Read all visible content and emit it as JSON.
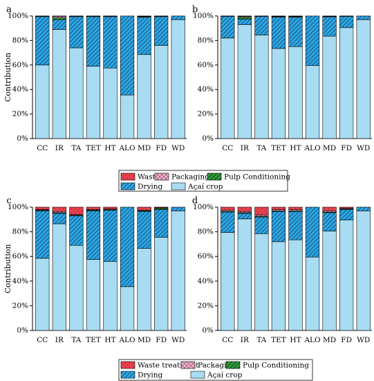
{
  "colors": {
    "acai_crop": "#a8dcf2",
    "drying": "#2aa8e3",
    "pulp_conditioning": "#2f9a3a",
    "packaging": "#e8b4c8",
    "wastes": "#e6424f",
    "axis": "#000000"
  },
  "legends": [
    {
      "entries": [
        {
          "label": "Wastes",
          "series": "Wastes"
        },
        {
          "label": "Packaging",
          "series": "Packaging"
        },
        {
          "label": "Pulp Conditioning",
          "series": "Pulp Conditioning"
        },
        {
          "label": "Drying",
          "series": "Drying"
        },
        {
          "label": "Açaí crop",
          "series": "Açaí crop"
        }
      ]
    },
    {
      "entries": [
        {
          "label": "Waste treatment",
          "series": "Wastes"
        },
        {
          "label": "Packaging",
          "series": "Packaging"
        },
        {
          "label": "Pulp Conditioning",
          "series": "Pulp Conditioning"
        },
        {
          "label": "Drying",
          "series": "Drying"
        },
        {
          "label": "Açaí crop",
          "series": "Açaí crop"
        }
      ]
    }
  ],
  "chart_data": [
    {
      "type": "bar",
      "panel": "a",
      "ylabel": "Contribution",
      "ylim": [
        0,
        100
      ],
      "yticks": [
        "0%",
        "20%",
        "40%",
        "60%",
        "80%",
        "100%"
      ],
      "categories": [
        "CC",
        "IR",
        "TA",
        "TET",
        "HT",
        "ALO",
        "MD",
        "FD",
        "WD"
      ],
      "series": [
        {
          "name": "Açaí crop",
          "values": [
            60,
            89,
            74,
            59,
            57.5,
            35.5,
            68.5,
            76,
            97
          ]
        },
        {
          "name": "Drying",
          "values": [
            39.5,
            8,
            25.5,
            40.5,
            42,
            64.5,
            30.5,
            23.5,
            3
          ]
        },
        {
          "name": "Pulp Conditioning",
          "values": [
            0.2,
            1.5,
            0.2,
            0.2,
            0.2,
            0,
            0.3,
            0.2,
            0
          ]
        },
        {
          "name": "Packaging",
          "values": [
            0.2,
            1.2,
            0.2,
            0.2,
            0.2,
            0,
            0.4,
            0.2,
            0
          ]
        },
        {
          "name": "Wastes",
          "values": [
            0.1,
            0.3,
            0.1,
            0.1,
            0.1,
            0,
            0.3,
            0.1,
            0
          ]
        }
      ]
    },
    {
      "type": "bar",
      "panel": "b",
      "ylim": [
        0,
        100
      ],
      "yticks": [
        "0%",
        "20%",
        "40%",
        "60%",
        "80%",
        "100%"
      ],
      "categories": [
        "CC",
        "IR",
        "TA",
        "TET",
        "HT",
        "ALO",
        "MD",
        "FD",
        "WD"
      ],
      "series": [
        {
          "name": "Açaí crop",
          "values": [
            82,
            93,
            84.5,
            73.5,
            75,
            59.5,
            83.5,
            90.5,
            97
          ]
        },
        {
          "name": "Drying",
          "values": [
            17.6,
            4.5,
            15.1,
            25.6,
            24,
            40.5,
            15.8,
            9.1,
            3
          ]
        },
        {
          "name": "Pulp Conditioning",
          "values": [
            0.2,
            1.5,
            0.2,
            0.4,
            0.5,
            0,
            0.3,
            0.2,
            0
          ]
        },
        {
          "name": "Packaging",
          "values": [
            0.1,
            0.7,
            0.1,
            0.3,
            0.3,
            0,
            0.2,
            0.1,
            0
          ]
        },
        {
          "name": "Wastes",
          "values": [
            0.1,
            0.3,
            0.1,
            0.2,
            0.2,
            0,
            0.2,
            0.1,
            0
          ]
        }
      ]
    },
    {
      "type": "bar",
      "panel": "c",
      "ylabel": "Contribution",
      "ylim": [
        0,
        100
      ],
      "yticks": [
        "0%",
        "20%",
        "40%",
        "60%",
        "80%",
        "100%"
      ],
      "categories": [
        "CC",
        "IR",
        "TA",
        "TET",
        "HT",
        "ALO",
        "MD",
        "FD",
        "WD"
      ],
      "series": [
        {
          "name": "Açaí crop",
          "values": [
            58.5,
            86.5,
            69,
            57.5,
            56,
            35.5,
            66.5,
            75.5,
            97
          ]
        },
        {
          "name": "Drying",
          "values": [
            38.5,
            8.5,
            24,
            39.5,
            41.5,
            64.5,
            30,
            22.5,
            3
          ]
        },
        {
          "name": "Pulp Conditioning",
          "values": [
            0.5,
            0.5,
            0.5,
            0.5,
            0.5,
            0,
            0.5,
            1,
            0
          ]
        },
        {
          "name": "Packaging",
          "values": [
            0.5,
            1,
            0.5,
            0.5,
            0.5,
            0,
            0.5,
            0.5,
            0
          ]
        },
        {
          "name": "Wastes",
          "values": [
            2,
            3.5,
            6,
            2,
            1.5,
            0,
            2.5,
            0.5,
            0
          ]
        }
      ]
    },
    {
      "type": "bar",
      "panel": "d",
      "ylim": [
        0,
        100
      ],
      "yticks": [
        "0%",
        "20%",
        "40%",
        "60%",
        "80%",
        "100%"
      ],
      "categories": [
        "CC",
        "IR",
        "TA",
        "TET",
        "HT",
        "ALO",
        "MD",
        "FD",
        "WD"
      ],
      "series": [
        {
          "name": "Açaí crop",
          "values": [
            79.5,
            90.5,
            78.5,
            72,
            73.5,
            59.5,
            80.5,
            89.5,
            97
          ]
        },
        {
          "name": "Drying",
          "values": [
            16.5,
            4.5,
            13.5,
            24.5,
            23,
            40.5,
            15,
            8.5,
            3
          ]
        },
        {
          "name": "Pulp Conditioning",
          "values": [
            0.5,
            0.5,
            0.5,
            0.5,
            0.5,
            0,
            0.5,
            0.5,
            0
          ]
        },
        {
          "name": "Packaging",
          "values": [
            1,
            1,
            1,
            1,
            1,
            0,
            1,
            0.5,
            0
          ]
        },
        {
          "name": "Wastes",
          "values": [
            2.5,
            3.5,
            6.5,
            2,
            2,
            0,
            3,
            1,
            0
          ]
        }
      ]
    }
  ]
}
